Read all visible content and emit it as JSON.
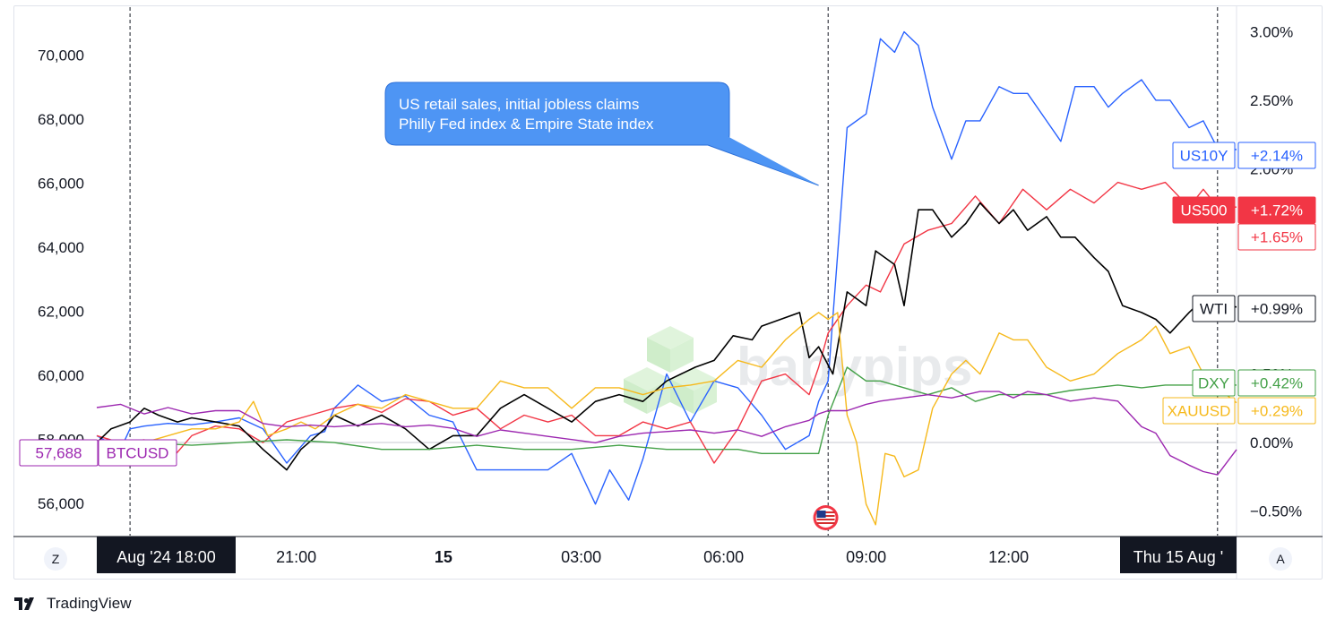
{
  "chart_data": {
    "type": "line",
    "title": "",
    "left_axis": {
      "ticks": [
        70000,
        68000,
        66000,
        64000,
        62000,
        60000,
        58000,
        56000
      ],
      "tick_labels": [
        "70,000",
        "68,000",
        "66,000",
        "64,000",
        "62,000",
        "60,000",
        "58,000",
        "56,000"
      ],
      "range": [
        55000,
        71500
      ]
    },
    "right_axis": {
      "ticks": [
        3.0,
        2.5,
        2.0,
        0.5,
        0.0,
        -0.5
      ],
      "tick_labels": [
        "3.00%",
        "2.50%",
        "2.00%",
        "0.50%",
        "0.00%",
        "−0.50%"
      ],
      "range": [
        -0.68,
        3.18
      ]
    },
    "x_axis": {
      "range": [
        0,
        24
      ],
      "ticks": [
        {
          "x": 1.3,
          "label": "Aug '24   18:00",
          "highlight": true
        },
        {
          "x": 4.2,
          "label": "21:00"
        },
        {
          "x": 7.3,
          "label": "15",
          "bold": true
        },
        {
          "x": 10.2,
          "label": "03:00"
        },
        {
          "x": 13.2,
          "label": "06:00"
        },
        {
          "x": 16.2,
          "label": "09:00"
        },
        {
          "x": 19.2,
          "label": "12:00"
        },
        {
          "x": 23.2,
          "label": "Thu 15 Aug '",
          "highlight": true
        }
      ],
      "event_lines": [
        0.7,
        15.4,
        23.6
      ]
    },
    "grid": false,
    "annotation": {
      "lines": [
        "US retail sales, initial jobless claims",
        "Philly Fed index & Empire State index"
      ],
      "points_to_x": 15.2
    },
    "event_marker": "us-flag",
    "series": [
      {
        "name": "US10Y",
        "axis": "right",
        "color": "#2962ff",
        "change": "+2.14%",
        "x": [
          0,
          0.5,
          0.7,
          1,
          1.5,
          2,
          2.5,
          3,
          3.5,
          4,
          4.5,
          4.8,
          5,
          5.5,
          6,
          6.5,
          7,
          7.5,
          8,
          8.5,
          9,
          9.5,
          10,
          10.5,
          10.8,
          11.2,
          11.5,
          12,
          12.5,
          13,
          13.5,
          14,
          14.5,
          15,
          15.2,
          15.4,
          15.8,
          16.2,
          16.5,
          16.8,
          17,
          17.3,
          17.6,
          18,
          18.3,
          18.6,
          19,
          19.3,
          19.6,
          20,
          20.3,
          20.6,
          21,
          21.3,
          21.6,
          22,
          22.3,
          22.6,
          23,
          23.3,
          23.6,
          24
        ],
        "y": [
          0.05,
          -0.05,
          0.1,
          0.12,
          0.14,
          0.13,
          0.15,
          0.18,
          0.1,
          -0.15,
          0.05,
          0.08,
          0.25,
          0.42,
          0.3,
          0.34,
          0.2,
          0.15,
          -0.2,
          -0.2,
          -0.2,
          -0.2,
          -0.08,
          -0.45,
          -0.2,
          -0.42,
          -0.12,
          0.5,
          0.15,
          0.45,
          0.4,
          0.2,
          -0.05,
          0.05,
          0.3,
          0.45,
          2.3,
          2.4,
          2.95,
          2.85,
          3.0,
          2.9,
          2.45,
          2.07,
          2.35,
          2.35,
          2.6,
          2.55,
          2.55,
          2.35,
          2.2,
          2.6,
          2.6,
          2.45,
          2.55,
          2.65,
          2.5,
          2.5,
          2.3,
          2.35,
          2.15,
          2.14
        ]
      },
      {
        "name": "US500",
        "axis": "right",
        "color": "#f23645",
        "change": "+1.72%",
        "x": [
          0,
          0.5,
          1,
          1.5,
          2,
          2.5,
          3,
          3.5,
          4,
          4.5,
          5,
          5.5,
          6,
          6.5,
          7,
          7.5,
          8,
          8.5,
          9,
          9.5,
          10,
          10.5,
          11,
          11.5,
          12,
          12.5,
          13,
          13.5,
          14,
          14.5,
          15,
          15.2,
          15.4,
          15.8,
          16.2,
          16.5,
          17,
          17.5,
          18,
          18.5,
          19,
          19.5,
          20,
          20.5,
          21,
          21.5,
          22,
          22.5,
          23,
          23.3,
          23.6,
          24
        ],
        "y": [
          0.05,
          0.0,
          0.02,
          -0.15,
          0.05,
          0.12,
          0.1,
          0.0,
          0.15,
          0.2,
          0.25,
          0.28,
          0.22,
          0.32,
          0.3,
          0.2,
          0.25,
          0.1,
          0.2,
          0.15,
          0.2,
          0.05,
          0.05,
          0.15,
          0.1,
          0.15,
          -0.15,
          0.1,
          0.45,
          0.5,
          0.35,
          0.55,
          0.8,
          1.0,
          1.15,
          1.1,
          1.45,
          1.55,
          1.6,
          1.8,
          1.6,
          1.85,
          1.7,
          1.85,
          1.75,
          1.9,
          1.85,
          1.9,
          1.72,
          1.85,
          1.72,
          1.72
        ]
      },
      {
        "name": "WTI",
        "axis": "right",
        "color": "#000000",
        "change": "+0.99%",
        "x": [
          0,
          0.3,
          0.7,
          1,
          1.3,
          1.7,
          2,
          2.5,
          3,
          3.5,
          4,
          4.3,
          4.8,
          5,
          5.5,
          6,
          6.5,
          7,
          7.5,
          8,
          8.5,
          9,
          9.5,
          10,
          10.5,
          11,
          11.5,
          12,
          12.3,
          12.6,
          13,
          13.4,
          13.8,
          14,
          14.4,
          14.8,
          15,
          15.2,
          15.5,
          15.8,
          16.2,
          16.4,
          16.8,
          17,
          17.3,
          17.6,
          18,
          18.3,
          18.6,
          19,
          19.3,
          19.6,
          20,
          20.3,
          20.6,
          21,
          21.3,
          21.6,
          22,
          22.3,
          22.6,
          23,
          23.3,
          23.6,
          24
        ],
        "y": [
          0,
          0.1,
          0.15,
          0.25,
          0.2,
          0.15,
          0.18,
          0.15,
          0.12,
          -0.05,
          -0.2,
          -0.05,
          0.1,
          0.2,
          0.12,
          0.2,
          0.1,
          -0.05,
          0.05,
          0.05,
          0.25,
          0.35,
          0.25,
          0.15,
          0.3,
          0.35,
          0.3,
          0.45,
          0.5,
          0.55,
          0.6,
          0.78,
          0.75,
          0.85,
          0.9,
          0.95,
          0.62,
          0.7,
          0.5,
          1.1,
          1.0,
          1.4,
          1.3,
          1.0,
          1.7,
          1.7,
          1.5,
          1.6,
          1.75,
          1.6,
          1.7,
          1.55,
          1.65,
          1.5,
          1.5,
          1.35,
          1.25,
          1.0,
          0.95,
          0.9,
          0.8,
          0.95,
          1.05,
          1.0,
          0.99
        ]
      },
      {
        "name": "DXY",
        "axis": "right",
        "color": "#43a047",
        "change": "+0.42%",
        "x": [
          0,
          1,
          2,
          3,
          4,
          5,
          6,
          7,
          8,
          9,
          10,
          11,
          12,
          13,
          13.5,
          14,
          14.5,
          15,
          15.2,
          15.4,
          15.8,
          16.2,
          16.5,
          17,
          17.5,
          18,
          18.5,
          19,
          19.5,
          20,
          20.5,
          21,
          21.5,
          22,
          22.5,
          23,
          23.5,
          24
        ],
        "y": [
          0,
          0,
          -0.02,
          0,
          0.02,
          0,
          -0.05,
          -0.05,
          -0.02,
          -0.05,
          -0.05,
          -0.02,
          -0.05,
          -0.05,
          -0.05,
          -0.08,
          -0.08,
          -0.08,
          -0.08,
          0.2,
          0.55,
          0.45,
          0.45,
          0.4,
          0.35,
          0.4,
          0.3,
          0.35,
          0.35,
          0.35,
          0.38,
          0.4,
          0.42,
          0.4,
          0.42,
          0.42,
          0.42,
          0.42
        ]
      },
      {
        "name": "XAUUSD",
        "axis": "right",
        "color": "#f6b91c",
        "change": "+0.29%",
        "x": [
          0,
          1,
          1.5,
          2,
          2.5,
          3,
          3.3,
          3.6,
          4,
          4.3,
          4.6,
          5,
          5.5,
          6,
          6.5,
          7,
          7.5,
          8,
          8.5,
          9,
          9.5,
          10,
          10.5,
          11,
          11.5,
          12,
          12.5,
          13,
          13.5,
          14,
          14.5,
          15,
          15.2,
          15.4,
          15.6,
          15.8,
          16,
          16.2,
          16.4,
          16.6,
          16.8,
          17,
          17.3,
          17.6,
          18,
          18.3,
          18.6,
          19,
          19.3,
          19.6,
          20,
          20.5,
          21,
          21.5,
          22,
          22.3,
          22.6,
          23,
          23.3,
          23.6,
          24
        ],
        "y": [
          0,
          0,
          0.05,
          0.1,
          0.1,
          0.15,
          0.3,
          0.05,
          0.1,
          0.15,
          0.1,
          0.2,
          0.28,
          0.25,
          0.35,
          0.3,
          0.25,
          0.25,
          0.45,
          0.4,
          0.4,
          0.25,
          0.4,
          0.4,
          0.35,
          0.4,
          0.42,
          0.45,
          0.6,
          0.55,
          0.75,
          0.9,
          0.95,
          0.9,
          0.95,
          0.2,
          0.0,
          -0.45,
          -0.6,
          -0.08,
          -0.1,
          -0.25,
          -0.2,
          0.25,
          0.5,
          0.6,
          0.5,
          0.8,
          0.75,
          0.75,
          0.55,
          0.45,
          0.5,
          0.65,
          0.75,
          0.85,
          0.65,
          0.7,
          0.5,
          0.4,
          0.29
        ]
      },
      {
        "name": "BTCUSD",
        "axis": "left",
        "color": "#9c27b0",
        "change": "57,688",
        "x": [
          0,
          0.5,
          1,
          1.5,
          2,
          2.5,
          3,
          3.5,
          4,
          4.5,
          5,
          5.5,
          6,
          6.5,
          7,
          7.5,
          8,
          8.5,
          9,
          9.5,
          10,
          10.5,
          11,
          11.5,
          12,
          12.5,
          13,
          13.5,
          14,
          14.5,
          15,
          15.2,
          15.4,
          15.8,
          16.2,
          16.5,
          17,
          17.5,
          18,
          18.3,
          18.6,
          19,
          19.3,
          19.6,
          20,
          20.5,
          21,
          21.5,
          22,
          22.3,
          22.6,
          23,
          23.3,
          23.6,
          24
        ],
        "y": [
          59000,
          59100,
          58800,
          59000,
          58800,
          58900,
          58900,
          58500,
          58400,
          58450,
          58400,
          58450,
          58500,
          58400,
          58450,
          58350,
          58100,
          58300,
          58200,
          58100,
          58000,
          57900,
          58100,
          58200,
          58250,
          58300,
          58200,
          58300,
          58100,
          58400,
          58600,
          58800,
          58900,
          58900,
          59100,
          59200,
          59300,
          59400,
          59300,
          59400,
          59500,
          59500,
          59300,
          59500,
          59400,
          59200,
          59300,
          59200,
          58400,
          58200,
          57500,
          57200,
          57000,
          56900,
          57688
        ]
      }
    ]
  },
  "axis_buttons": {
    "left": "Z",
    "right": "A"
  },
  "watermark": "babypips",
  "footer": {
    "brand": "TradingView"
  }
}
